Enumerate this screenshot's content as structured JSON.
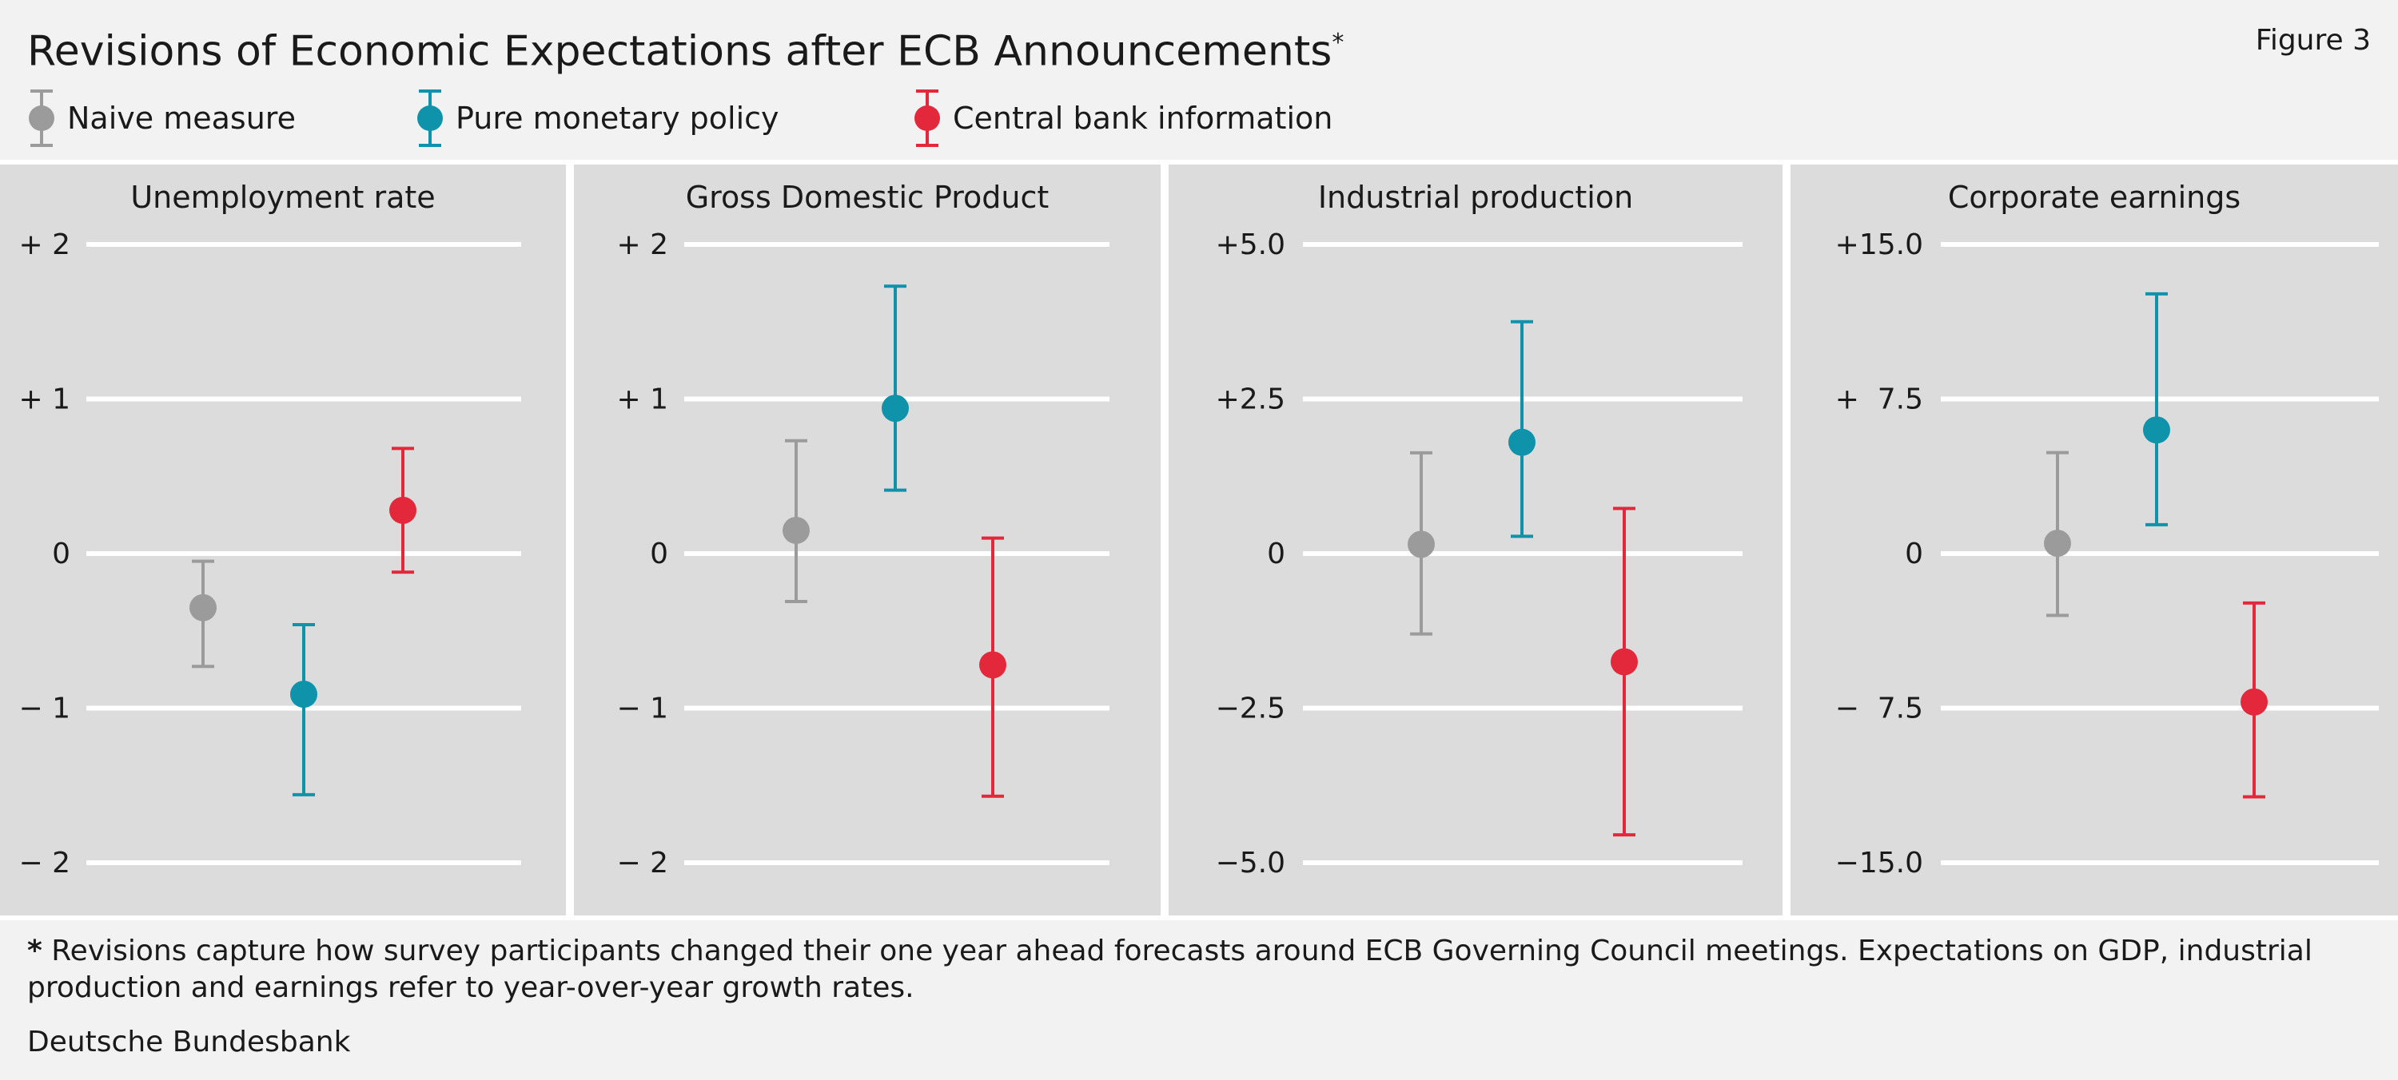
{
  "header": {
    "title": "Revisions of Economic Expectations after ECB Announcements",
    "title_marker": "*",
    "figure_label": "Figure 3"
  },
  "legend": [
    {
      "name": "Naive measure",
      "color": "#9b9b9b"
    },
    {
      "name": "Pure monetary policy",
      "color": "#0f93ab"
    },
    {
      "name": "Central bank information",
      "color": "#e4283c"
    }
  ],
  "chart_data": [
    {
      "type": "scatter",
      "title": "Unemployment rate",
      "ylim": [
        -2,
        2
      ],
      "yticks": [
        2,
        1,
        0,
        -1,
        -2
      ],
      "ytick_labels": [
        "+ 2",
        "+ 1",
        "0",
        "− 1",
        "− 2"
      ],
      "series": [
        {
          "name": "Naive measure",
          "value": -0.35,
          "low": -0.73,
          "high": -0.05
        },
        {
          "name": "Pure monetary policy",
          "value": -0.91,
          "low": -1.56,
          "high": -0.46
        },
        {
          "name": "Central bank information",
          "value": 0.28,
          "low": -0.12,
          "high": 0.68
        }
      ]
    },
    {
      "type": "scatter",
      "title": "Gross Domestic Product",
      "ylim": [
        -2,
        2
      ],
      "yticks": [
        2,
        1,
        0,
        -1,
        -2
      ],
      "ytick_labels": [
        "+ 2",
        "+ 1",
        "0",
        "− 1",
        "− 2"
      ],
      "series": [
        {
          "name": "Naive measure",
          "value": 0.15,
          "low": -0.31,
          "high": 0.73
        },
        {
          "name": "Pure monetary policy",
          "value": 0.94,
          "low": 0.41,
          "high": 1.73
        },
        {
          "name": "Central bank information",
          "value": -0.72,
          "low": -1.57,
          "high": 0.1
        }
      ]
    },
    {
      "type": "scatter",
      "title": "Industrial production",
      "ylim": [
        -5,
        5
      ],
      "yticks": [
        5,
        2.5,
        0,
        -2.5,
        -5
      ],
      "ytick_labels": [
        "+5.0",
        "+2.5",
        "0",
        "−2.5",
        "−5.0"
      ],
      "series": [
        {
          "name": "Naive measure",
          "value": 0.15,
          "low": -1.3,
          "high": 1.63
        },
        {
          "name": "Pure monetary policy",
          "value": 1.8,
          "low": 0.28,
          "high": 3.75
        },
        {
          "name": "Central bank information",
          "value": -1.75,
          "low": -4.55,
          "high": 0.73
        }
      ]
    },
    {
      "type": "scatter",
      "title": "Corporate earnings",
      "ylim": [
        -15,
        15
      ],
      "yticks": [
        15,
        7.5,
        0,
        -7.5,
        -15
      ],
      "ytick_labels": [
        "+15.0",
        "+  7.5",
        "0",
        "−  7.5",
        "−15.0"
      ],
      "series": [
        {
          "name": "Naive measure",
          "value": 0.5,
          "low": -3,
          "high": 4.9
        },
        {
          "name": "Pure monetary policy",
          "value": 6,
          "low": 1.4,
          "high": 12.6
        },
        {
          "name": "Central bank information",
          "value": -7.2,
          "low": -11.8,
          "high": -2.4
        }
      ]
    }
  ],
  "footnote": {
    "marker": "*",
    "text": "Revisions capture how survey participants changed their one year ahead forecasts around ECB Governing Council meetings. Expectations on GDP, industrial production and earnings refer to year-over-year growth rates."
  },
  "source": "Deutsche Bundesbank"
}
